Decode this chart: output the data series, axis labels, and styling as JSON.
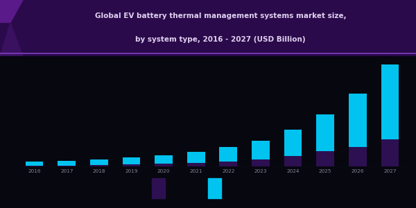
{
  "title_line1": "Global EV battery thermal management systems market size,",
  "title_line2": "by system type, 2016 - 2027 (USD Billion)",
  "years": [
    "2016",
    "2017",
    "2018",
    "2019",
    "2020",
    "2021",
    "2022",
    "2023",
    "2024",
    "2025",
    "2026",
    "2027"
  ],
  "series1_bottom": [
    0.04,
    0.05,
    0.07,
    0.1,
    0.13,
    0.18,
    0.25,
    0.35,
    0.5,
    0.72,
    0.95,
    1.3
  ],
  "series2_top": [
    0.18,
    0.22,
    0.28,
    0.34,
    0.42,
    0.52,
    0.68,
    0.9,
    1.28,
    1.78,
    2.55,
    3.6
  ],
  "color_bottom": "#2d1052",
  "color_top": "#00c3f0",
  "bg_color": "#07070f",
  "title_bg_top": "#2a0a4a",
  "title_bg_bottom": "#1a0a3a",
  "title_text_color": "#e0d0f0",
  "bar_width": 0.55,
  "ylim_max": 5.2,
  "axis_line_color": "#333348",
  "tick_color": "#888899"
}
